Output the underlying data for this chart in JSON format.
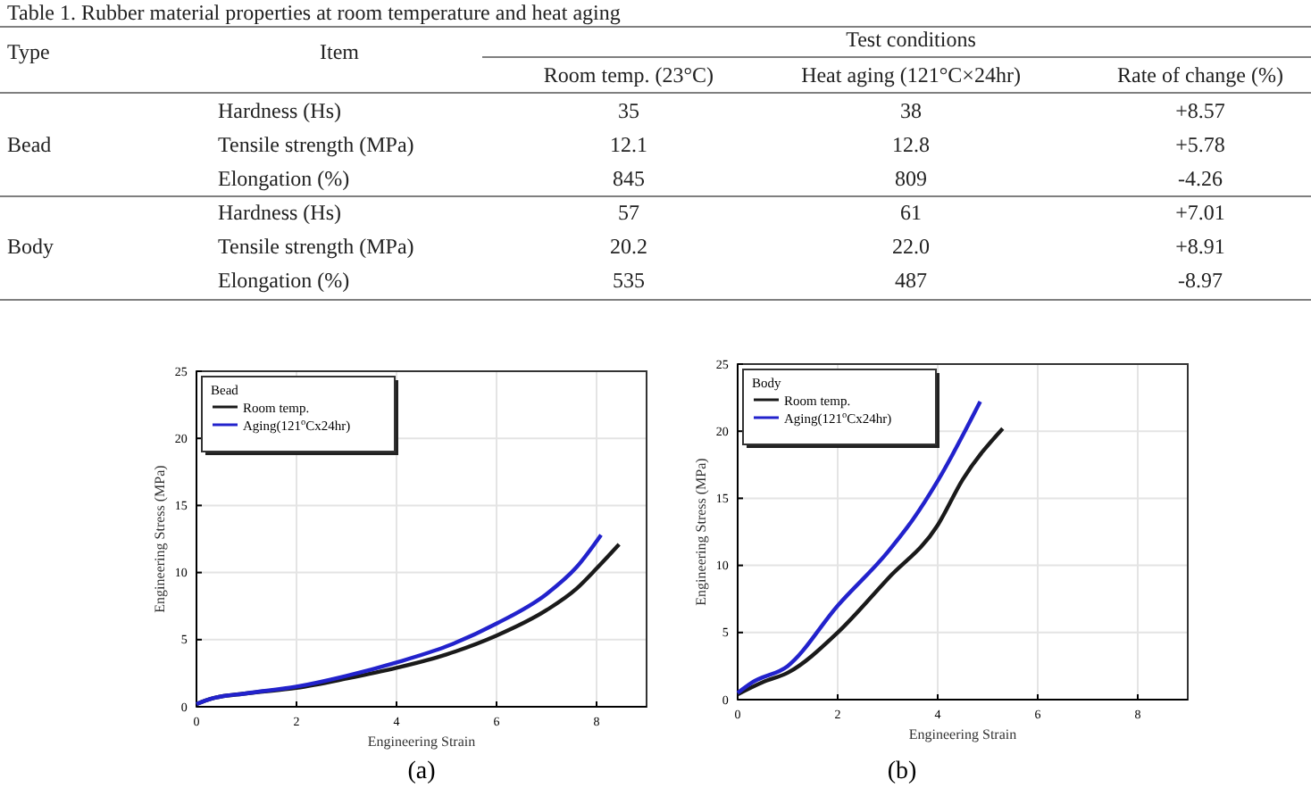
{
  "chart_data": [
    {
      "type": "other",
      "title": "Table 1. Rubber material properties at room temperature and heat aging",
      "annotations": [
        "Type",
        "Item",
        "Test conditions",
        "Room temp. (23°C)",
        "Heat aging (121°C×24hr)",
        "Rate of change (%)",
        "Bead",
        "Hardness (Hs)",
        "35",
        "38",
        "+8.57",
        "Tensile strength (MPa)",
        "12.1",
        "12.8",
        "+5.78",
        "Elongation (%)",
        "845",
        "809",
        "-4.26",
        "Body",
        "Hardness (Hs)",
        "57",
        "61",
        "+7.01",
        "Tensile strength (MPa)",
        "20.2",
        "22.0",
        "+8.91",
        "Elongation (%)",
        "535",
        "487",
        "-8.97"
      ]
    },
    {
      "type": "line",
      "xlabel": "Engineering Strain",
      "ylabel": "Engineering Stress (MPa)",
      "legend_title": "Bead",
      "legend": "top left",
      "grid": true,
      "xlim": [
        0,
        9
      ],
      "xticks": [
        0,
        2,
        4,
        6,
        8
      ],
      "ylim": [
        0,
        25
      ],
      "yticks": [
        0,
        5,
        10,
        15,
        20,
        25
      ],
      "annotations": [
        "(a)"
      ],
      "series": [
        {
          "name": "Room temp.",
          "color": "#1a1a1a",
          "x": [
            0,
            0.3,
            1,
            2,
            3,
            4,
            5,
            6,
            7,
            7.6,
            8,
            8.45
          ],
          "values": [
            0.2,
            0.6,
            1,
            1.4,
            2.1,
            2.9,
            3.9,
            5.3,
            7.2,
            8.8,
            10.3,
            12.1
          ]
        },
        {
          "name": "Aging(121$^{o}$Cx24hr)",
          "color": "#2222cc",
          "x": [
            0,
            0.3,
            1,
            2,
            3,
            4,
            5,
            6,
            7,
            7.6,
            8.09
          ],
          "values": [
            0.2,
            0.6,
            1,
            1.5,
            2.3,
            3.3,
            4.5,
            6.2,
            8.4,
            10.4,
            12.8
          ]
        }
      ]
    },
    {
      "type": "line",
      "xlabel": "Engineering Strain",
      "ylabel": "Engineering Stress (MPa)",
      "legend_title": "Body",
      "legend": "top left",
      "grid": true,
      "xlim": [
        0,
        9
      ],
      "xticks": [
        0,
        2,
        4,
        6,
        8
      ],
      "ylim": [
        0,
        25
      ],
      "yticks": [
        0,
        5,
        10,
        15,
        20,
        25
      ],
      "annotations": [
        "(b)"
      ],
      "series": [
        {
          "name": "Room temp.",
          "color": "#1a1a1a",
          "x": [
            0,
            0.5,
            1,
            2,
            3,
            4,
            4.5,
            5.3
          ],
          "values": [
            0.4,
            1.3,
            2,
            5,
            9,
            13,
            16.4,
            20.2
          ]
        },
        {
          "name": "Aging(121$^{o}$Cx24hr)",
          "color": "#2222cc",
          "x": [
            0,
            0.3,
            1,
            2,
            3,
            3.5,
            4,
            4.85
          ],
          "values": [
            0.5,
            1.3,
            2.5,
            7,
            11,
            13.4,
            16.3,
            22.2
          ]
        }
      ]
    }
  ]
}
